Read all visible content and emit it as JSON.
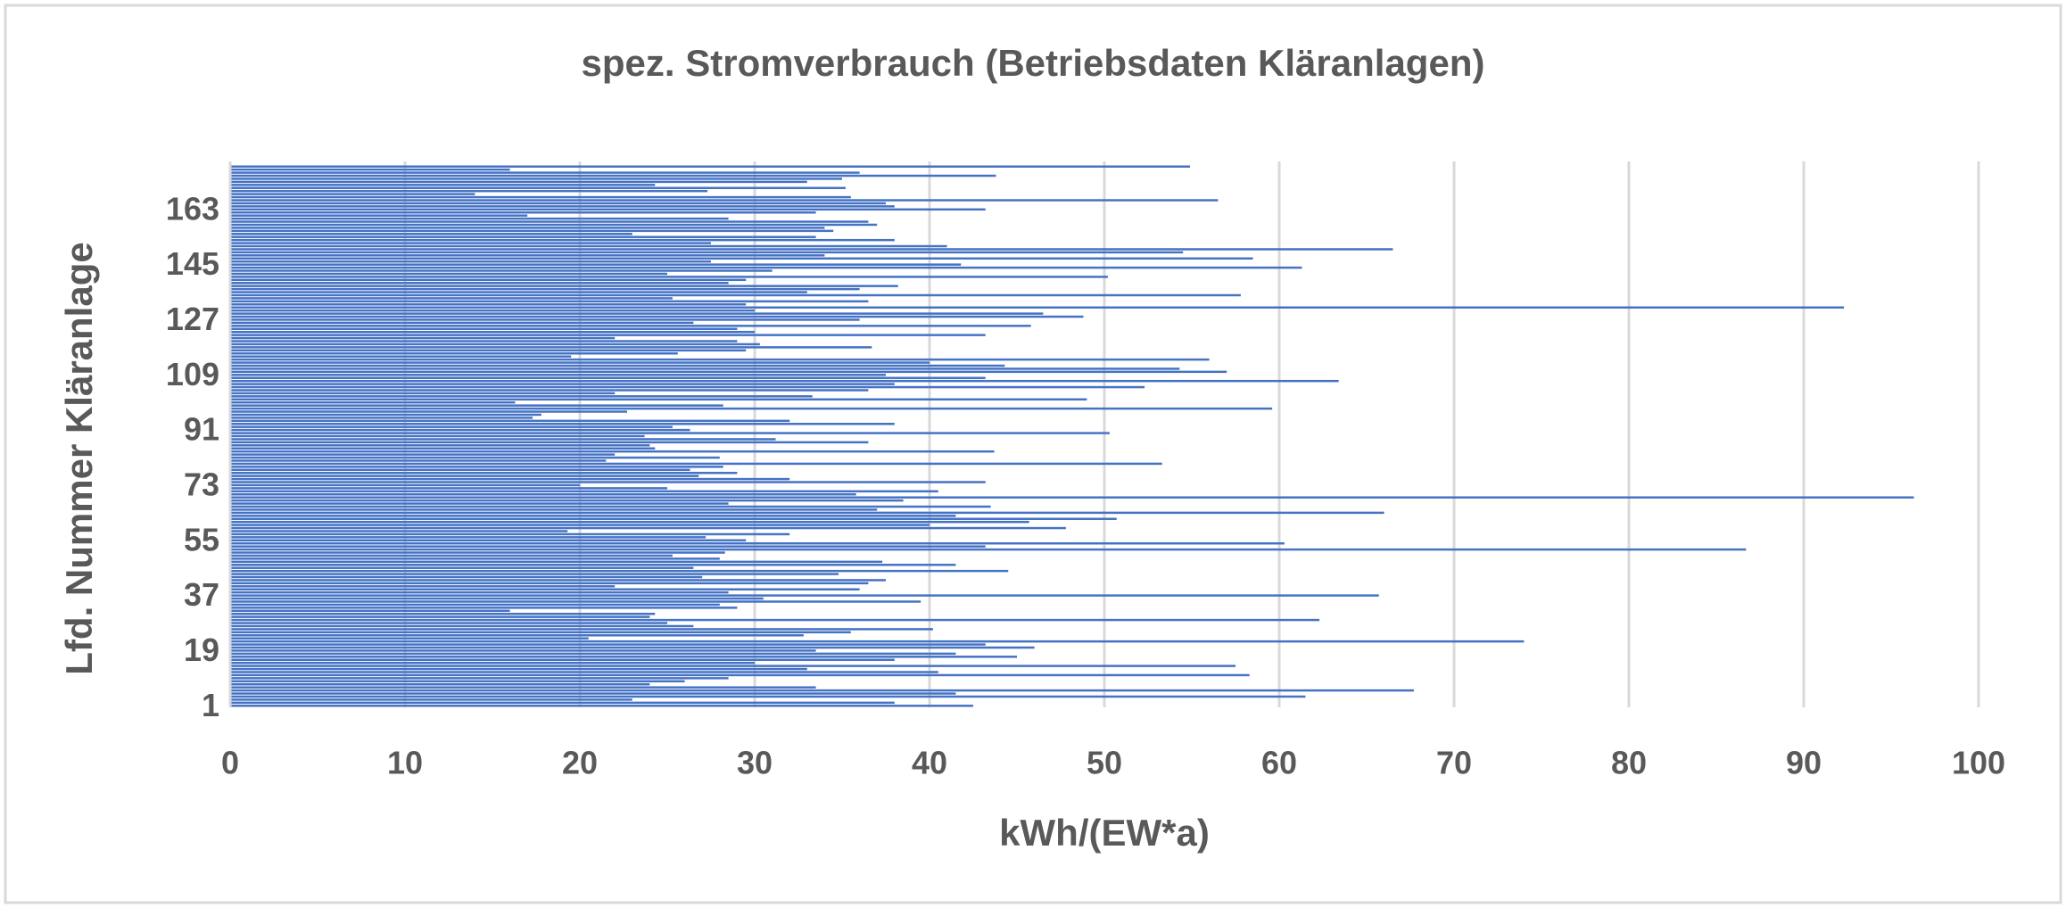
{
  "chart_data": {
    "type": "hbar",
    "title": "spez. Stromverbrauch (Betriebsdaten Kläranlagen)",
    "x_label": "kWh/(EW*a)",
    "y_label": "Lfd. Nummer Kläranlage",
    "color": "#4472c4",
    "grid": true,
    "xlim": [
      0,
      100
    ],
    "xticks": [
      0,
      10,
      20,
      30,
      40,
      50,
      60,
      70,
      80,
      90,
      100
    ],
    "categories": [
      1,
      null,
      null,
      null,
      null,
      null,
      null,
      null,
      null,
      null,
      null,
      null,
      null,
      null,
      null,
      null,
      null,
      null,
      19,
      null,
      null,
      null,
      null,
      null,
      null,
      null,
      null,
      null,
      null,
      null,
      null,
      null,
      null,
      null,
      null,
      null,
      37,
      null,
      null,
      null,
      null,
      null,
      null,
      null,
      null,
      null,
      null,
      null,
      null,
      null,
      null,
      null,
      null,
      null,
      55,
      null,
      null,
      null,
      null,
      null,
      null,
      null,
      null,
      null,
      null,
      null,
      null,
      null,
      null,
      null,
      null,
      null,
      73,
      null,
      null,
      null,
      null,
      null,
      null,
      null,
      null,
      null,
      null,
      null,
      null,
      null,
      null,
      null,
      null,
      null,
      91,
      null,
      null,
      null,
      null,
      null,
      null,
      null,
      null,
      null,
      null,
      null,
      null,
      null,
      null,
      null,
      null,
      null,
      109,
      null,
      null,
      null,
      null,
      null,
      null,
      null,
      null,
      null,
      null,
      null,
      null,
      null,
      null,
      null,
      null,
      null,
      127,
      null,
      null,
      null,
      null,
      null,
      null,
      null,
      null,
      null,
      null,
      null,
      null,
      null,
      null,
      null,
      null,
      null,
      145,
      null,
      null,
      null,
      null,
      null,
      null,
      null,
      null,
      null,
      null,
      null,
      null,
      null,
      null,
      null,
      null,
      null,
      163,
      null,
      null,
      null,
      null,
      null,
      null,
      null,
      null,
      null,
      null,
      null,
      null,
      null,
      null
    ],
    "values": [
      42.5,
      38,
      23,
      61.5,
      41.5,
      67.7,
      33.5,
      24,
      26,
      28.5,
      58.3,
      40.5,
      33,
      57.5,
      30,
      38,
      45,
      41.5,
      33.5,
      46,
      43.2,
      74,
      20.5,
      32.8,
      35.5,
      40.2,
      26.5,
      25,
      62.3,
      24,
      24.3,
      16,
      29,
      28,
      39.5,
      30.5,
      65.7,
      28.5,
      36,
      22,
      36.5,
      37.5,
      27,
      34.8,
      44.5,
      26.5,
      41.5,
      37.3,
      28,
      25.3,
      28.3,
      86.7,
      43.2,
      60.3,
      29.5,
      27.2,
      32,
      19.3,
      47.8,
      40,
      45.7,
      50.7,
      41.5,
      66,
      37,
      43.5,
      28.5,
      38.5,
      96.3,
      35.8,
      40.5,
      25,
      20,
      43.2,
      32,
      26.8,
      29,
      26.3,
      28.2,
      53.3,
      21.5,
      28,
      22,
      43.7,
      24.3,
      24,
      36.5,
      31.2,
      23.7,
      50.3,
      26.3,
      25.3,
      38,
      32,
      17.3,
      17.8,
      22.7,
      59.6,
      28.2,
      16.3,
      49,
      33.3,
      22,
      36.5,
      52.3,
      38,
      63.4,
      43.2,
      37.5,
      57,
      54.3,
      44.3,
      40,
      56,
      19.5,
      25.6,
      29.5,
      36.7,
      30.3,
      29,
      22,
      43.2,
      30,
      29,
      45.8,
      26.5,
      36,
      48.8,
      46.5,
      30,
      92.3,
      29.5,
      36.5,
      25.3,
      57.8,
      33,
      36,
      38.2,
      28.5,
      29.5,
      50.2,
      25,
      31,
      61.3,
      41.8,
      27.5,
      58.5,
      34,
      54.5,
      66.5,
      41,
      27.5,
      38,
      33.5,
      23,
      34.5,
      34,
      37,
      36.5,
      28.5,
      17,
      33.5,
      43.2,
      38,
      37.5,
      56.5,
      35.5,
      14,
      27.3,
      35.2,
      24.3,
      33,
      35,
      43.8,
      36,
      16,
      54.9
    ]
  }
}
